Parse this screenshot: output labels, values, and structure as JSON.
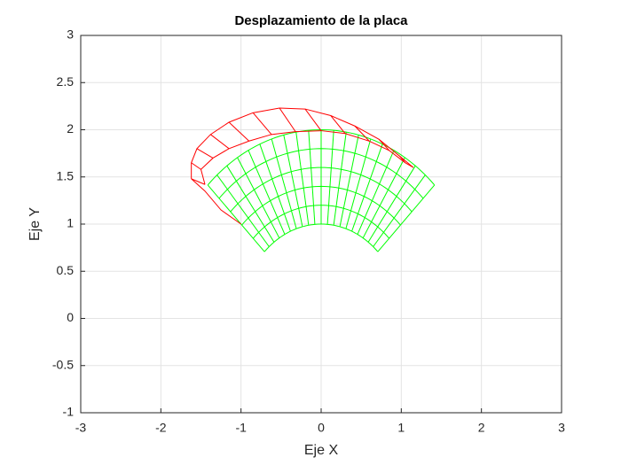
{
  "chart_data": {
    "type": "mesh",
    "title": "Desplazamiento de la placa",
    "x_label": "Eje X",
    "y_label": "Eje Y",
    "xlim": [
      -3,
      3
    ],
    "ylim": [
      -1,
      3
    ],
    "xticks": [
      -3,
      -2,
      -1,
      0,
      1,
      2,
      3
    ],
    "yticks": [
      -1,
      -0.5,
      0,
      0.5,
      1,
      1.5,
      2,
      2.5,
      3
    ],
    "grid": true,
    "undeformed": {
      "color": "#00ff00",
      "radii": [
        1,
        1.2,
        1.4,
        1.6,
        1.8,
        2
      ],
      "angles": [
        45,
        49.5,
        54,
        58.5,
        63,
        67.5,
        72,
        76.5,
        81,
        85.5,
        90,
        94.5,
        99,
        103.5,
        108,
        112.5,
        117,
        121.5,
        126,
        130.5,
        135
      ]
    },
    "deformed": {
      "color": "#ff0000",
      "curves": [
        {
          "x": [
            -1.62,
            -1.62,
            -1.55,
            -1.38,
            -1.15,
            -0.85,
            -0.52,
            -0.2,
            0.12,
            0.42,
            0.72,
            0.98,
            1.15
          ],
          "y": [
            1.48,
            1.65,
            1.8,
            1.95,
            2.08,
            2.18,
            2.23,
            2.22,
            2.15,
            2.04,
            1.9,
            1.72,
            1.6
          ]
        },
        {
          "x": [
            -1.45,
            -1.5,
            -1.35,
            -1.15,
            -0.9,
            -0.62,
            -0.32,
            0.0,
            0.3,
            0.6,
            0.85,
            1.05,
            1.15
          ],
          "y": [
            1.42,
            1.58,
            1.7,
            1.8,
            1.88,
            1.95,
            1.98,
            1.99,
            1.96,
            1.88,
            1.78,
            1.65,
            1.6
          ]
        },
        {
          "x": [
            -1.62,
            -1.45,
            -1.25,
            -1.0
          ],
          "y": [
            1.48,
            1.35,
            1.15,
            1.0
          ]
        }
      ]
    }
  }
}
